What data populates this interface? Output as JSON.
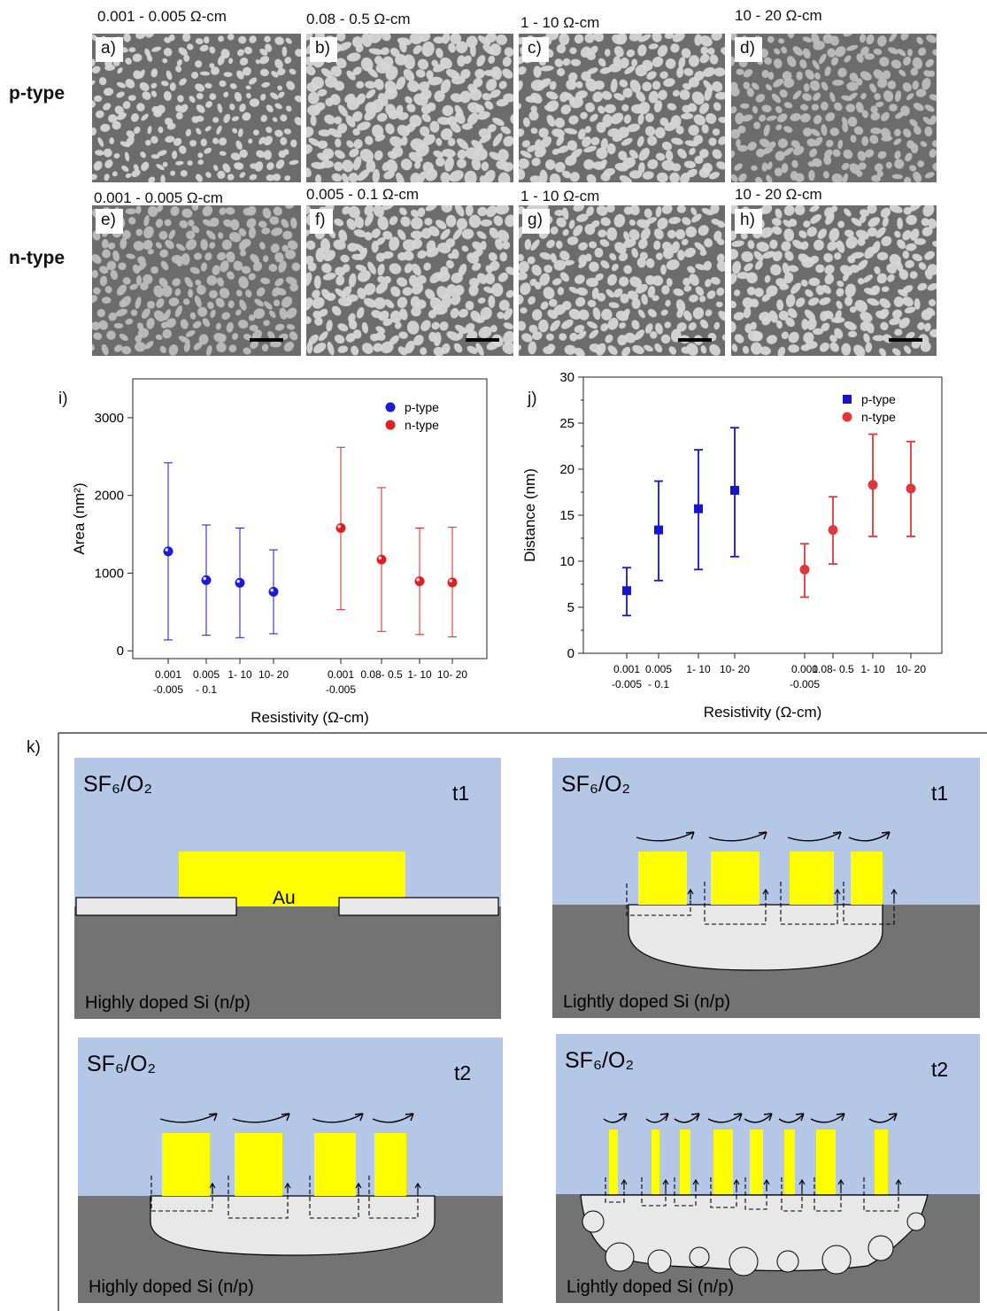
{
  "sem": {
    "row_labels": [
      "p-type",
      "n-type"
    ],
    "p_type": [
      {
        "tag": "a)",
        "resistivity": "0.001 - 0.005 Ω-cm"
      },
      {
        "tag": "b)",
        "resistivity": "0.08 - 0.5 Ω-cm"
      },
      {
        "tag": "c)",
        "resistivity": "1 - 10 Ω-cm"
      },
      {
        "tag": "d)",
        "resistivity": "10 - 20 Ω-cm"
      }
    ],
    "n_type": [
      {
        "tag": "e)",
        "resistivity": "0.001 - 0.005 Ω-cm"
      },
      {
        "tag": "f)",
        "resistivity": "0.005 - 0.1 Ω-cm"
      },
      {
        "tag": "g)",
        "resistivity": "1 - 10 Ω-cm"
      },
      {
        "tag": "h)",
        "resistivity": "10 - 20 Ω-cm"
      }
    ]
  },
  "chart_data": [
    {
      "panel": "i)",
      "type": "scatter",
      "ylabel": "Area (nm²)",
      "xlabel": "Resistivity   (Ω-cm)",
      "ylim": [
        -100,
        3500
      ],
      "yticks": [
        0,
        1000,
        2000,
        3000
      ],
      "marker": "sphere",
      "legend": "top-right",
      "tick_labels": [
        [
          "0.001",
          "-0.005"
        ],
        [
          "0.005",
          "- 0.1"
        ],
        [
          "1- 10"
        ],
        [
          "10- 20"
        ],
        [
          "0.001",
          "-0.005"
        ],
        [
          "0.08- 0.5"
        ],
        [
          "1- 10"
        ],
        [
          "10- 20"
        ]
      ],
      "series": [
        {
          "name": "p-type",
          "color": "#1a1adb",
          "values": [
            1280,
            910,
            875,
            760
          ],
          "err_low": [
            140,
            200,
            170,
            220
          ],
          "err_high": [
            2420,
            1620,
            1580,
            1300
          ]
        },
        {
          "name": "n-type",
          "color": "#e02020",
          "values": [
            1580,
            1175,
            895,
            880
          ],
          "err_low": [
            530,
            250,
            210,
            180
          ],
          "err_high": [
            2620,
            2100,
            1580,
            1590
          ]
        }
      ]
    },
    {
      "panel": "j)",
      "type": "scatter",
      "ylabel": "Distance (nm)",
      "xlabel": "Resistivity   (Ω-cm)",
      "ylim": [
        0,
        30
      ],
      "yticks": [
        0,
        5,
        10,
        15,
        20,
        25,
        30
      ],
      "legend": "top-right",
      "tick_labels": [
        [
          "0.001",
          "-0.005"
        ],
        [
          "0.005",
          "- 0.1"
        ],
        [
          "1- 10"
        ],
        [
          "10- 20"
        ],
        [
          "0.001",
          "-0.005"
        ],
        [
          "0.08- 0.5"
        ],
        [
          "1- 10"
        ],
        [
          "10- 20"
        ]
      ],
      "series": [
        {
          "name": "p-type",
          "color": "#1515d0",
          "marker": "square",
          "values": [
            6.8,
            13.4,
            15.7,
            17.7
          ],
          "err_low": [
            4.1,
            7.9,
            9.1,
            10.5
          ],
          "err_high": [
            9.3,
            18.7,
            22.1,
            24.5
          ]
        },
        {
          "name": "n-type",
          "color": "#e03838",
          "marker": "circle",
          "values": [
            9.1,
            13.4,
            18.3,
            17.9
          ],
          "err_low": [
            6.1,
            9.7,
            12.7,
            12.7
          ],
          "err_high": [
            11.9,
            17.0,
            23.8,
            23.0
          ]
        }
      ]
    }
  ],
  "schematic": {
    "panel": "k)",
    "gas": "SF₆/O₂",
    "au": "Au",
    "t1": "t1",
    "t2": "t2",
    "highly_doped": "Highly doped Si (n/p)",
    "lightly_doped": "Lightly doped Si (n/p)",
    "colors": {
      "gas": "#b4c7e7",
      "silicon": "#737373",
      "gold": "#ffff00",
      "oxide": "#e8e8e8"
    }
  }
}
